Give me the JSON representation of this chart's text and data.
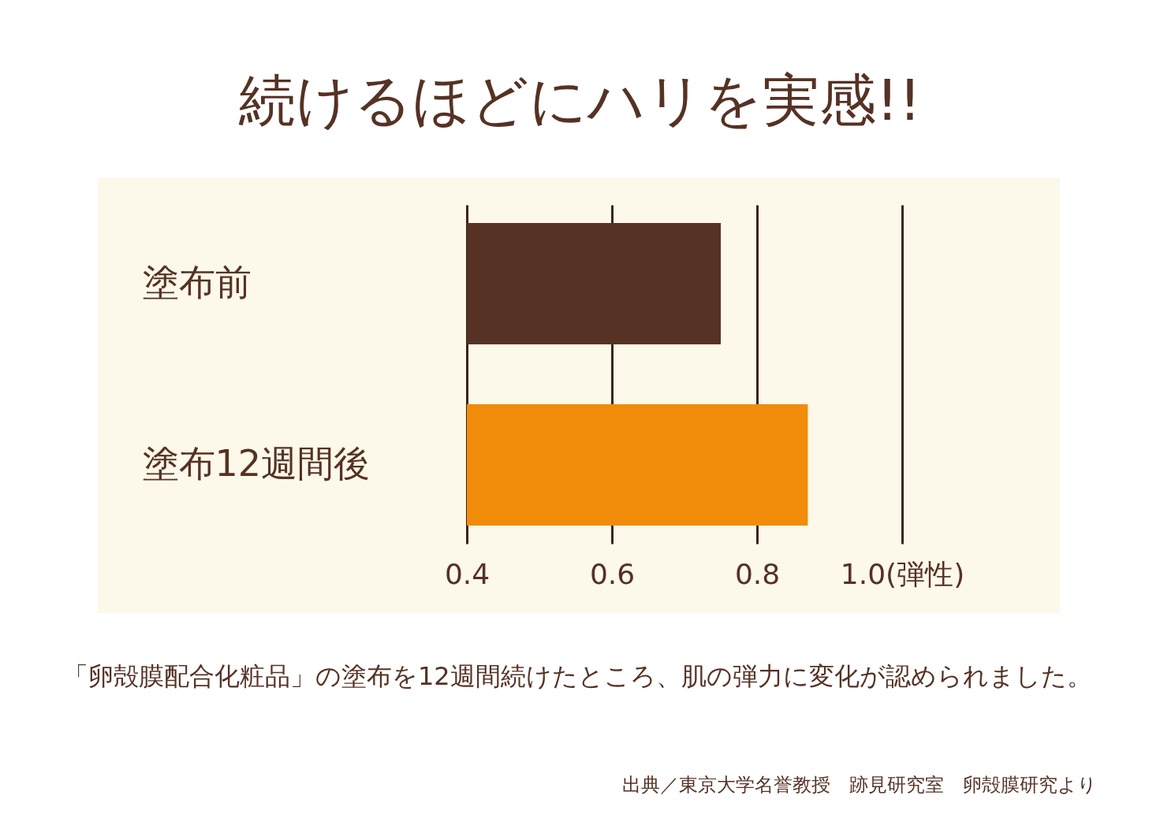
{
  "chart_data": {
    "type": "bar",
    "orientation": "horizontal",
    "title": "続けるほどにハリを実感!!",
    "categories": [
      "塗布前",
      "塗布12週間後"
    ],
    "values": [
      0.75,
      0.87
    ],
    "colors": [
      "#553224",
      "#f08c0a"
    ],
    "xlim": [
      0.4,
      1.0
    ],
    "xticks": [
      0.4,
      0.6,
      0.8,
      {
        "value": 1.0,
        "label": "1.0(弾性)"
      }
    ],
    "grid": "x",
    "annotations": [
      "「卵殻膜配合化粧品」の塗布を12週間続けたところ、肌の弾力に変化が認められました。",
      "出典／東京大学名誉教授　跡見研究室　卵殻膜研究より"
    ]
  }
}
